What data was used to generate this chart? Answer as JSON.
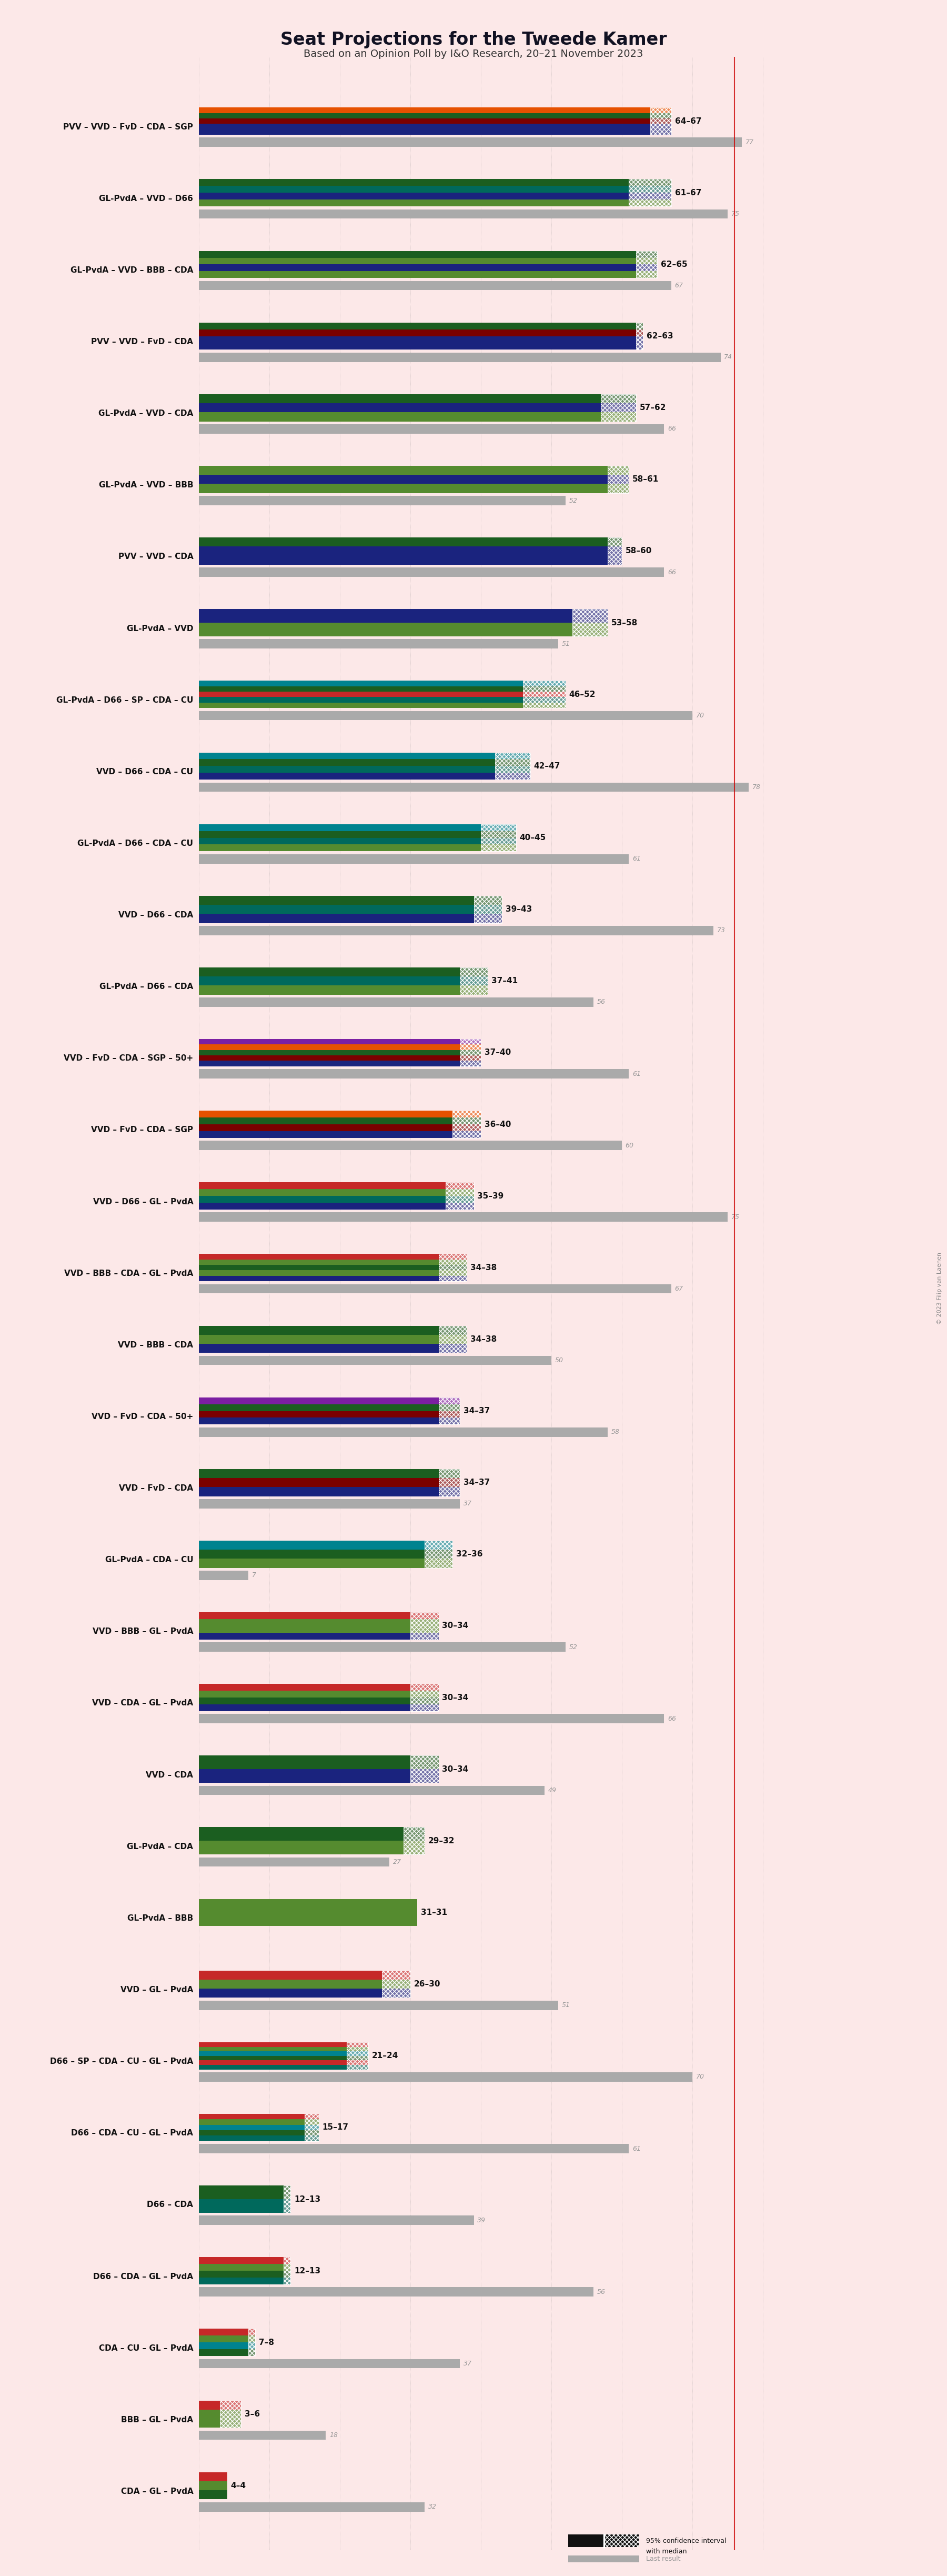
{
  "title": "Seat Projections for the Tweede Kamer",
  "subtitle": "Based on an Opinion Poll by IéO Research, 20–21 November 2023",
  "subtitle2": "Based on an Opinion Poll by I&O Research, 20–21 November 2023",
  "copyright": "© 2023 Filip van Laenen",
  "background_color": "#fce8e8",
  "majority": 76,
  "coalitions": [
    {
      "label": "PVV – VVD – FvD – CDA – SGP",
      "range_low": 64,
      "range_high": 67,
      "last_result": 77,
      "colors": [
        "#1a237e",
        "#1a237e",
        "#7b0000",
        "#1b5e20",
        "#e65100"
      ],
      "underlined": false
    },
    {
      "label": "GL-PvdA – VVD – D66",
      "range_low": 61,
      "range_high": 67,
      "last_result": 75,
      "colors": [
        "#558b2f",
        "#1a237e",
        "#00695c",
        "#1b5e20"
      ],
      "underlined": false
    },
    {
      "label": "GL-PvdA – VVD – BBB – CDA",
      "range_low": 62,
      "range_high": 65,
      "last_result": 67,
      "colors": [
        "#558b2f",
        "#1a237e",
        "#558b2f",
        "#1b5e20"
      ],
      "underlined": false
    },
    {
      "label": "PVV – VVD – FvD – CDA",
      "range_low": 62,
      "range_high": 63,
      "last_result": 74,
      "colors": [
        "#1a237e",
        "#1a237e",
        "#7b0000",
        "#1b5e20"
      ],
      "underlined": false
    },
    {
      "label": "GL-PvdA – VVD – CDA",
      "range_low": 57,
      "range_high": 62,
      "last_result": 66,
      "colors": [
        "#558b2f",
        "#1a237e",
        "#1b5e20"
      ],
      "underlined": false
    },
    {
      "label": "GL-PvdA – VVD – BBB",
      "range_low": 58,
      "range_high": 61,
      "last_result": 52,
      "colors": [
        "#558b2f",
        "#1a237e",
        "#558b2f"
      ],
      "underlined": false
    },
    {
      "label": "PVV – VVD – CDA",
      "range_low": 58,
      "range_high": 60,
      "last_result": 66,
      "colors": [
        "#1a237e",
        "#1a237e",
        "#1b5e20"
      ],
      "underlined": false
    },
    {
      "label": "GL-PvdA – VVD",
      "range_low": 53,
      "range_high": 58,
      "last_result": 51,
      "colors": [
        "#558b2f",
        "#1a237e"
      ],
      "underlined": false
    },
    {
      "label": "GL-PvdA – D66 – SP – CDA – CU",
      "range_low": 46,
      "range_high": 52,
      "last_result": 70,
      "colors": [
        "#558b2f",
        "#00695c",
        "#c62828",
        "#1b5e20",
        "#00838f"
      ],
      "underlined": false
    },
    {
      "label": "VVD – D66 – CDA – CU",
      "range_low": 42,
      "range_high": 47,
      "last_result": 78,
      "colors": [
        "#1a237e",
        "#00695c",
        "#1b5e20",
        "#00838f"
      ],
      "underlined": true
    },
    {
      "label": "GL-PvdA – D66 – CDA – CU",
      "range_low": 40,
      "range_high": 45,
      "last_result": 61,
      "colors": [
        "#558b2f",
        "#00695c",
        "#1b5e20",
        "#00838f"
      ],
      "underlined": false
    },
    {
      "label": "VVD – D66 – CDA",
      "range_low": 39,
      "range_high": 43,
      "last_result": 73,
      "colors": [
        "#1a237e",
        "#00695c",
        "#1b5e20"
      ],
      "underlined": false
    },
    {
      "label": "GL-PvdA – D66 – CDA",
      "range_low": 37,
      "range_high": 41,
      "last_result": 56,
      "colors": [
        "#558b2f",
        "#00695c",
        "#1b5e20"
      ],
      "underlined": false
    },
    {
      "label": "VVD – FvD – CDA – SGP – 50+",
      "range_low": 37,
      "range_high": 40,
      "last_result": 61,
      "colors": [
        "#1a237e",
        "#7b0000",
        "#1b5e20",
        "#e65100",
        "#7b1fa2"
      ],
      "underlined": false
    },
    {
      "label": "VVD – FvD – CDA – SGP",
      "range_low": 36,
      "range_high": 40,
      "last_result": 60,
      "colors": [
        "#1a237e",
        "#7b0000",
        "#1b5e20",
        "#e65100"
      ],
      "underlined": false
    },
    {
      "label": "VVD – D66 – GL – PvdA",
      "range_low": 35,
      "range_high": 39,
      "last_result": 75,
      "colors": [
        "#1a237e",
        "#00695c",
        "#558b2f",
        "#c62828"
      ],
      "underlined": false
    },
    {
      "label": "VVD – BBB – CDA – GL – PvdA",
      "range_low": 34,
      "range_high": 38,
      "last_result": 67,
      "colors": [
        "#1a237e",
        "#558b2f",
        "#1b5e20",
        "#558b2f",
        "#c62828"
      ],
      "underlined": false
    },
    {
      "label": "VVD – BBB – CDA",
      "range_low": 34,
      "range_high": 38,
      "last_result": 50,
      "colors": [
        "#1a237e",
        "#558b2f",
        "#1b5e20"
      ],
      "underlined": false
    },
    {
      "label": "VVD – FvD – CDA – 50+",
      "range_low": 34,
      "range_high": 37,
      "last_result": 58,
      "colors": [
        "#1a237e",
        "#7b0000",
        "#1b5e20",
        "#7b1fa2"
      ],
      "underlined": false
    },
    {
      "label": "VVD – FvD – CDA",
      "range_low": 34,
      "range_high": 37,
      "last_result": 37,
      "colors": [
        "#1a237e",
        "#7b0000",
        "#1b5e20"
      ],
      "underlined": false
    },
    {
      "label": "GL-PvdA – CDA – CU",
      "range_low": 32,
      "range_high": 36,
      "last_result": 7,
      "colors": [
        "#558b2f",
        "#1b5e20",
        "#00838f"
      ],
      "underlined": false
    },
    {
      "label": "VVD – BBB – GL – PvdA",
      "range_low": 30,
      "range_high": 34,
      "last_result": 52,
      "colors": [
        "#1a237e",
        "#558b2f",
        "#558b2f",
        "#c62828"
      ],
      "underlined": false
    },
    {
      "label": "VVD – CDA – GL – PvdA",
      "range_low": 30,
      "range_high": 34,
      "last_result": 66,
      "colors": [
        "#1a237e",
        "#1b5e20",
        "#558b2f",
        "#c62828"
      ],
      "underlined": false
    },
    {
      "label": "VVD – CDA",
      "range_low": 30,
      "range_high": 34,
      "last_result": 49,
      "colors": [
        "#1a237e",
        "#1b5e20"
      ],
      "underlined": false
    },
    {
      "label": "GL-PvdA – CDA",
      "range_low": 29,
      "range_high": 32,
      "last_result": 27,
      "colors": [
        "#558b2f",
        "#1b5e20"
      ],
      "underlined": false
    },
    {
      "label": "GL-PvdA – BBB",
      "range_low": 31,
      "range_high": 31,
      "last_result": 0,
      "colors": [
        "#558b2f",
        "#558b2f"
      ],
      "underlined": false
    },
    {
      "label": "VVD – GL – PvdA",
      "range_low": 26,
      "range_high": 30,
      "last_result": 51,
      "colors": [
        "#1a237e",
        "#558b2f",
        "#c62828"
      ],
      "underlined": false
    },
    {
      "label": "D66 – SP – CDA – CU – GL – PvdA",
      "range_low": 21,
      "range_high": 24,
      "last_result": 70,
      "colors": [
        "#00695c",
        "#c62828",
        "#1b5e20",
        "#00838f",
        "#558b2f",
        "#c62828"
      ],
      "underlined": false
    },
    {
      "label": "D66 – CDA – CU – GL – PvdA",
      "range_low": 15,
      "range_high": 17,
      "last_result": 61,
      "colors": [
        "#00695c",
        "#1b5e20",
        "#00838f",
        "#558b2f",
        "#c62828"
      ],
      "underlined": false
    },
    {
      "label": "D66 – CDA",
      "range_low": 12,
      "range_high": 13,
      "last_result": 39,
      "colors": [
        "#00695c",
        "#1b5e20"
      ],
      "underlined": false
    },
    {
      "label": "D66 – CDA – GL – PvdA",
      "range_low": 12,
      "range_high": 13,
      "last_result": 56,
      "colors": [
        "#00695c",
        "#1b5e20",
        "#558b2f",
        "#c62828"
      ],
      "underlined": false
    },
    {
      "label": "CDA – CU – GL – PvdA",
      "range_low": 7,
      "range_high": 8,
      "last_result": 37,
      "colors": [
        "#1b5e20",
        "#00838f",
        "#558b2f",
        "#c62828"
      ],
      "underlined": false
    },
    {
      "label": "BBB – GL – PvdA",
      "range_low": 3,
      "range_high": 6,
      "last_result": 18,
      "colors": [
        "#558b2f",
        "#558b2f",
        "#c62828"
      ],
      "underlined": false
    },
    {
      "label": "CDA – GL – PvdA",
      "range_low": 4,
      "range_high": 4,
      "last_result": 32,
      "colors": [
        "#1b5e20",
        "#558b2f",
        "#c62828"
      ],
      "underlined": false
    }
  ]
}
